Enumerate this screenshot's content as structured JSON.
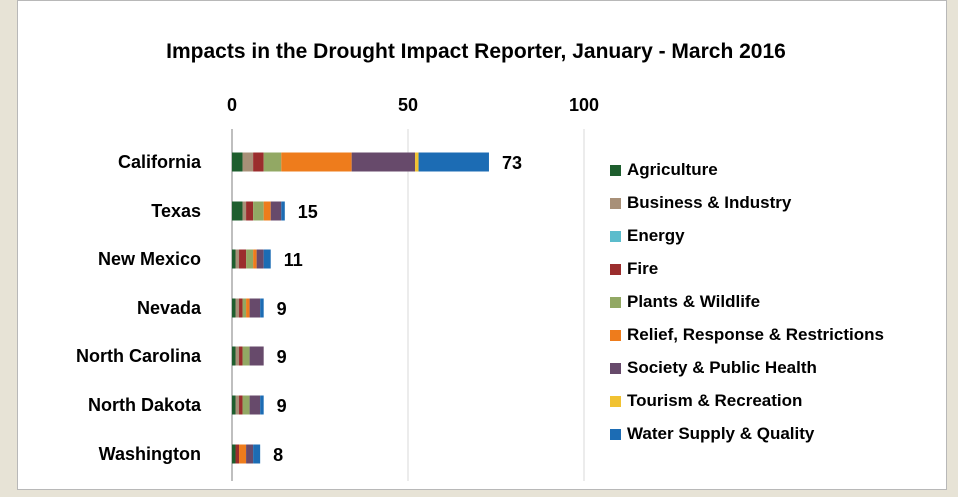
{
  "chart_data": {
    "type": "bar",
    "orientation": "horizontal",
    "stacked": true,
    "title": "Impacts in the Drought Impact Reporter, January - March 2016",
    "categories": [
      "California",
      "Texas",
      "New Mexico",
      "Nevada",
      "North Carolina",
      "North Dakota",
      "Washington"
    ],
    "totals": [
      73,
      15,
      11,
      9,
      9,
      9,
      8
    ],
    "xlim": [
      0,
      100
    ],
    "xticks": [
      "0",
      "50",
      "100"
    ],
    "axis_position": "top",
    "grid": true,
    "legend_position": "right",
    "series": [
      {
        "name": "Agriculture",
        "color": "#1e5e2e",
        "values": [
          3,
          3,
          1,
          1,
          1,
          1,
          1
        ]
      },
      {
        "name": "Business & Industry",
        "color": "#a89078",
        "values": [
          3,
          1,
          1,
          1,
          1,
          1,
          0
        ]
      },
      {
        "name": "Energy",
        "color": "#5bbccc",
        "values": [
          0,
          0,
          0,
          0,
          0,
          0,
          0
        ]
      },
      {
        "name": "Fire",
        "color": "#9b2d2d",
        "values": [
          3,
          2,
          2,
          1,
          1,
          1,
          1
        ]
      },
      {
        "name": "Plants & Wildlife",
        "color": "#92a864",
        "values": [
          5,
          3,
          2,
          1,
          2,
          2,
          0
        ]
      },
      {
        "name": "Relief, Response & Restrictions",
        "color": "#ee7c1c",
        "values": [
          20,
          2,
          1,
          1,
          0,
          0,
          2
        ]
      },
      {
        "name": "Society & Public Health",
        "color": "#674a6b",
        "values": [
          18,
          3,
          2,
          3,
          4,
          3,
          2
        ]
      },
      {
        "name": "Tourism & Recreation",
        "color": "#f1c232",
        "values": [
          1,
          0,
          0,
          0,
          0,
          0,
          0
        ]
      },
      {
        "name": "Water Supply & Quality",
        "color": "#1c6cb4",
        "values": [
          20,
          1,
          2,
          1,
          0,
          1,
          2
        ]
      }
    ]
  }
}
